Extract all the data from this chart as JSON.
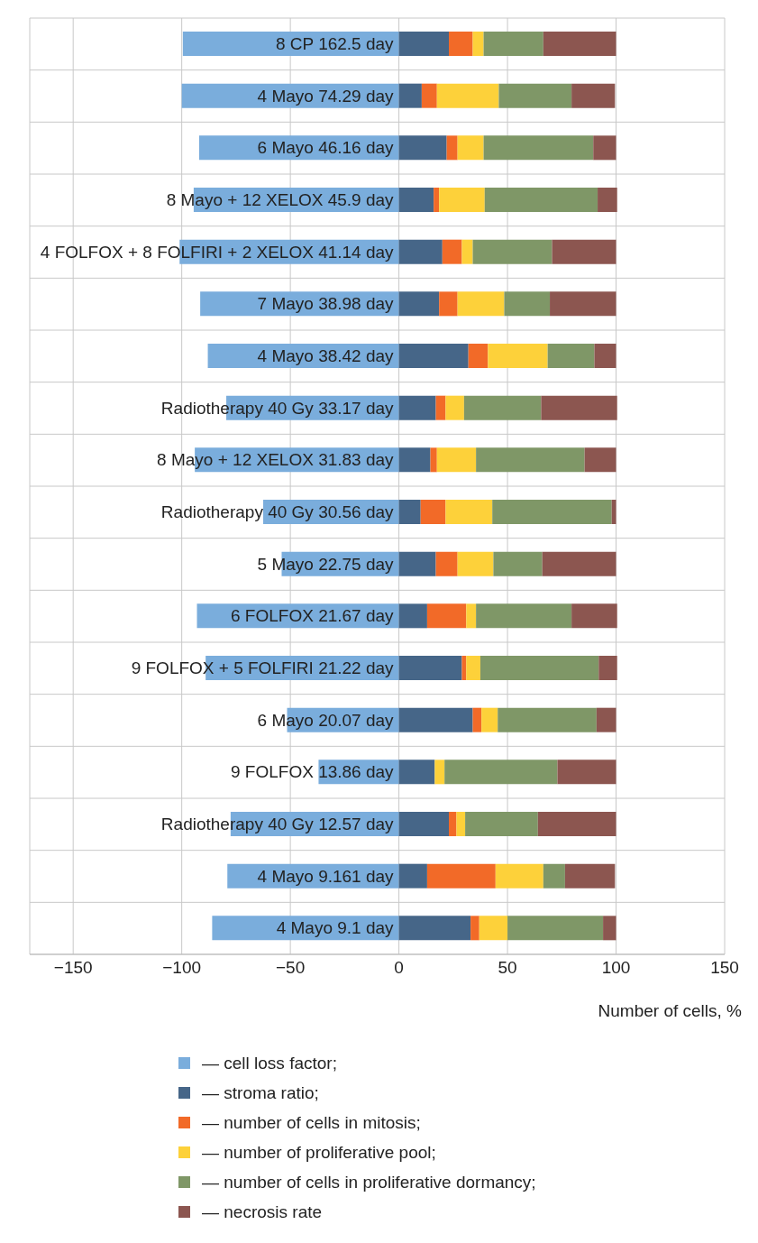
{
  "chart_data": {
    "type": "bar",
    "orientation": "horizontal",
    "stacked": true,
    "categories": [
      "8 CP 162.5 day",
      "4 Mayo 74.29 day",
      "6 Mayo 46.16 day",
      "8 Mayo + 12 XELOX 45.9 day",
      "4 FOLFOX + 8 FOLFIRI + 2 XELOX 41.14 day",
      "7 Mayo 38.98 day",
      "4 Mayo 38.42 day",
      "Radiotherapy 40 Gy 33.17 day",
      "8 Mayo + 12 XELOX 31.83 day",
      "Radiotherapy 40 Gy 30.56 day",
      "5 Mayo 22.75 day",
      "6 FOLFOX 21.67 day",
      "9 FOLFOX + 5 FOLFIRI 21.22 day",
      "6 Mayo 20.07 day",
      "9 FOLFOX 13.86 day",
      "Radiotherapy 40 Gy 12.57 day",
      "4 Mayo 9.161 day",
      "4 Mayo 9.1 day"
    ],
    "series": [
      {
        "name": "— cell loss factor;",
        "color": "#7aaddc",
        "values": [
          -99.5,
          -100,
          -92,
          -94.5,
          -101,
          -91.5,
          -88,
          -79.5,
          -94,
          -62.5,
          -54,
          -93,
          -89,
          -51.5,
          -37,
          -77.5,
          -79,
          -86
        ]
      },
      {
        "name": "— stroma ratio;",
        "color": "#466688",
        "values": [
          23,
          10.5,
          22,
          16,
          20,
          18.5,
          32,
          17,
          14.5,
          10,
          17,
          13,
          29,
          34,
          16.5,
          23,
          13,
          33
        ]
      },
      {
        "name": "— number of cells in mitosis;",
        "color": "#f26a28",
        "values": [
          11,
          7,
          5,
          2.5,
          9,
          8.5,
          9,
          4.5,
          3,
          11.5,
          10,
          18,
          2,
          4,
          0,
          3.5,
          31.5,
          4
        ]
      },
      {
        "name": "— number of proliferative pool;",
        "color": "#fdd13a",
        "values": [
          5,
          28.5,
          12,
          21,
          5,
          21.5,
          27.5,
          8.5,
          18,
          21.5,
          16.5,
          4.5,
          6.5,
          7.5,
          4.5,
          4,
          22,
          13
        ]
      },
      {
        "name": "— number of cells in proliferative dormancy;",
        "color": "#7f9767",
        "values": [
          27.5,
          33.5,
          50.5,
          52,
          36.5,
          21,
          21.5,
          35.5,
          50,
          55,
          22.5,
          44,
          54.5,
          45.5,
          52,
          33.5,
          10,
          44
        ]
      },
      {
        "name": "— necrosis rate",
        "color": "#8c5650",
        "values": [
          33.5,
          20,
          10.5,
          9,
          29.5,
          30.5,
          10,
          35,
          14.5,
          2,
          34,
          21,
          8.5,
          9,
          27,
          36,
          23,
          6
        ]
      }
    ],
    "xlim": [
      -170,
      150
    ],
    "xticks": [
      {
        "value": -150,
        "label": "−150"
      },
      {
        "value": -100,
        "label": "−100"
      },
      {
        "value": -50,
        "label": "−50"
      },
      0,
      50,
      100,
      150
    ],
    "xlabel": "Number of cells, %",
    "grid": true,
    "legend": "bottom"
  }
}
